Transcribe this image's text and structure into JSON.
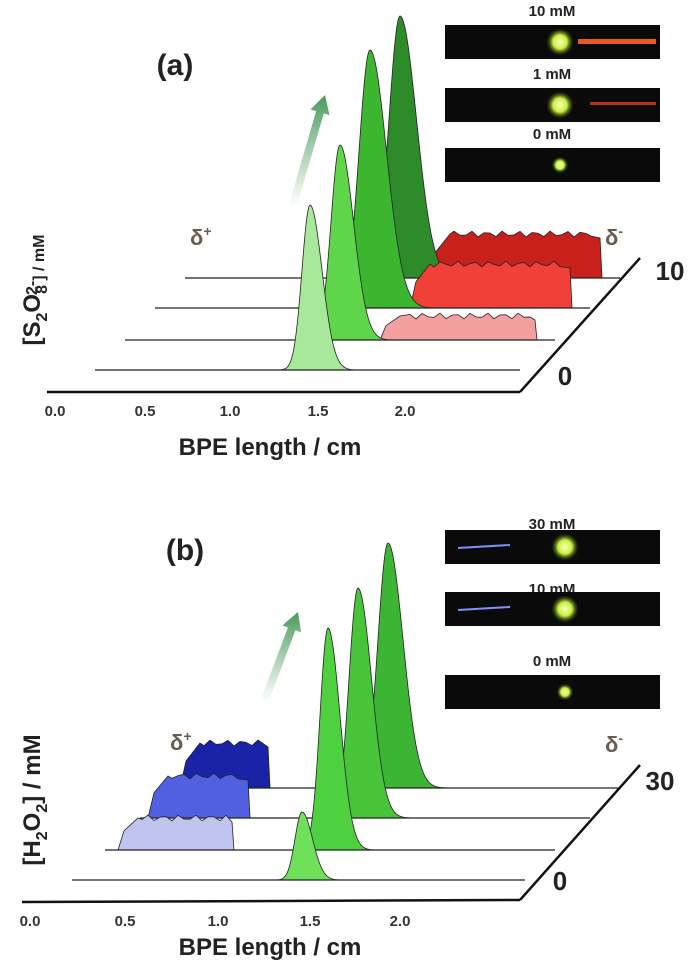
{
  "panels": [
    {
      "label": "(a)",
      "insets": [
        "10 mM",
        "1 mM",
        "0 mM"
      ],
      "y_label": [
        "[S",
        "2",
        "O",
        "8",
        "2-",
        "] / mM"
      ],
      "depth_ticks": [
        "0",
        "10"
      ],
      "x_ticks": [
        "0.0",
        "0.5",
        "1.0",
        "1.5",
        "2.0"
      ],
      "x_label": "BPE length / cm",
      "anode": [
        "δ",
        "+"
      ],
      "cathode": [
        "δ",
        "-"
      ]
    },
    {
      "label": "(b)",
      "insets": [
        "30 mM",
        "10 mM",
        "0 mM"
      ],
      "y_label": [
        "[H",
        "2",
        "O",
        "2",
        "] / mM"
      ],
      "depth_ticks": [
        "0",
        "30"
      ],
      "x_ticks": [
        "0.0",
        "0.5",
        "1.0",
        "1.5",
        "2.0"
      ],
      "x_label": "BPE length / cm",
      "anode": [
        "δ",
        "+"
      ],
      "cathode": [
        "δ",
        "-"
      ]
    }
  ]
}
